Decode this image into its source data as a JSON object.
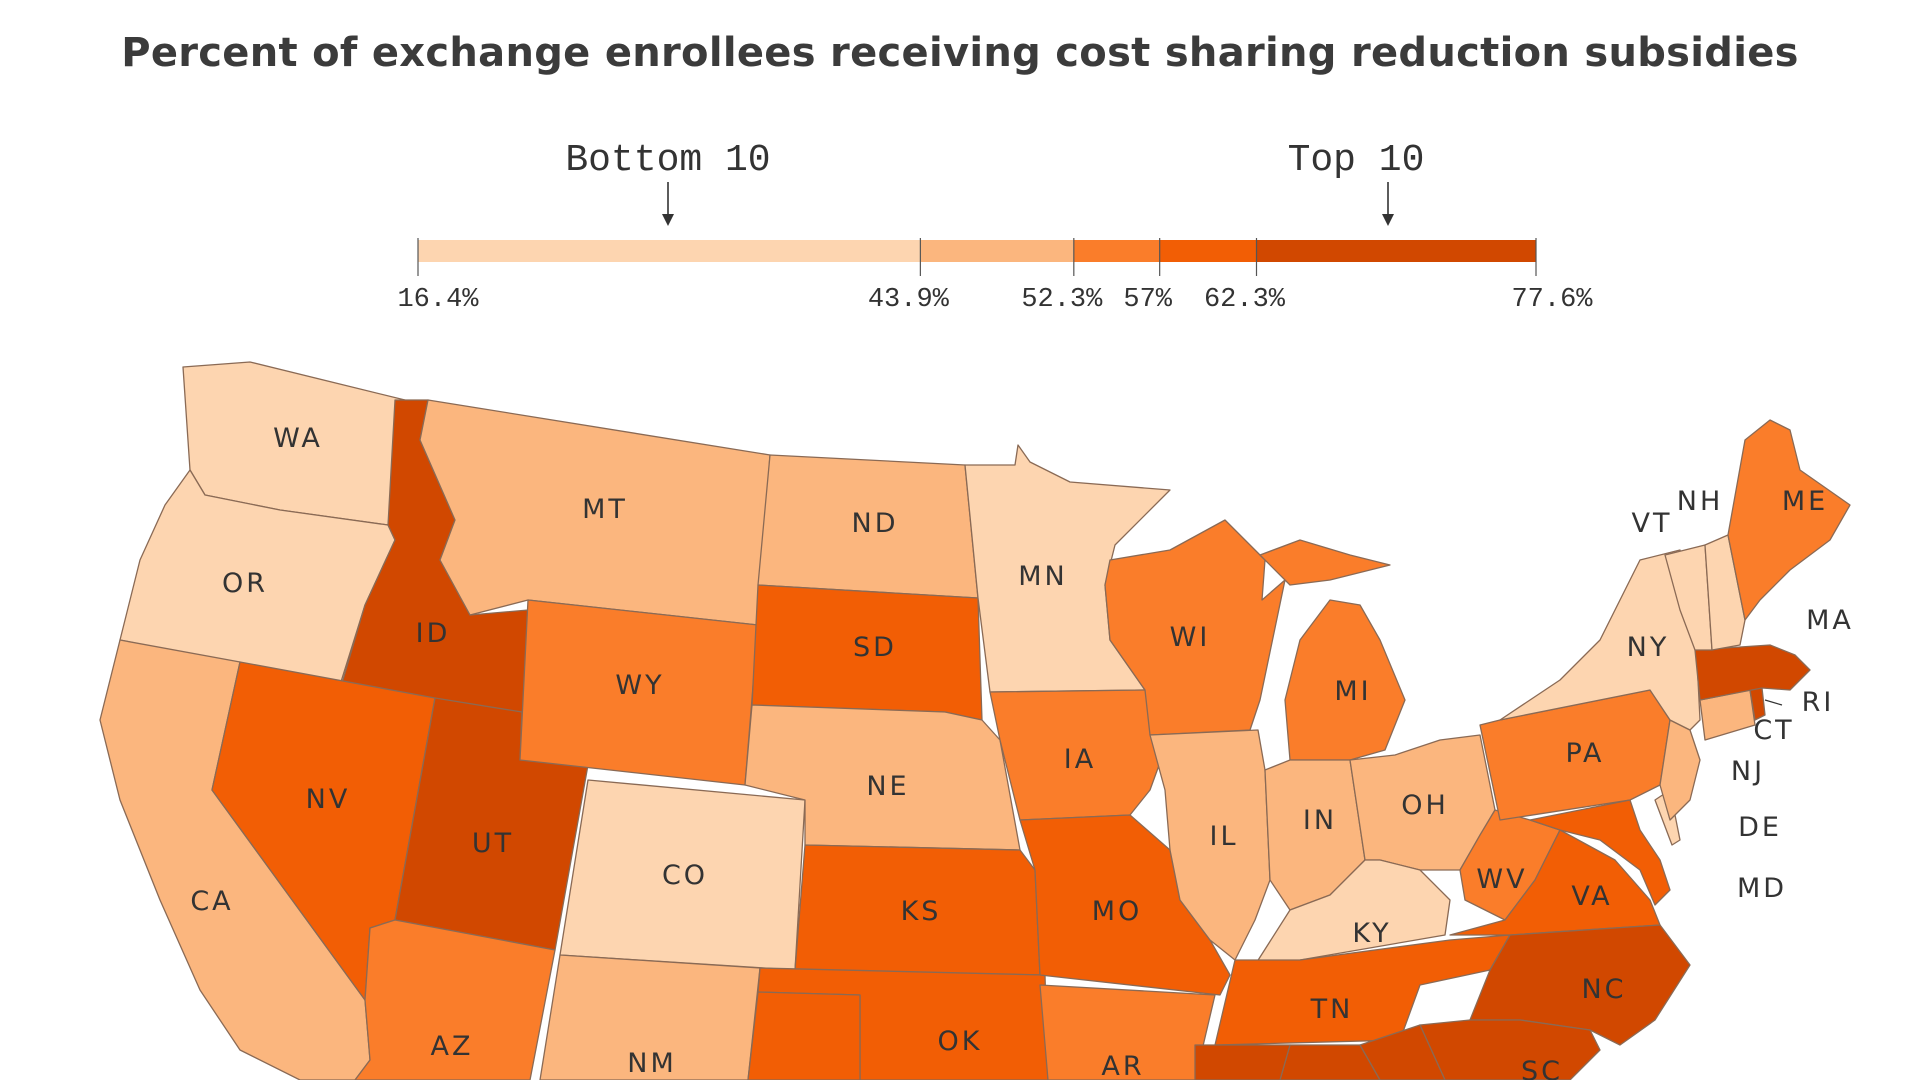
{
  "title": "Percent of exchange enrollees receiving cost sharing reduction subsidies",
  "legend": {
    "bottom_label": "Bottom 10",
    "top_label": "Top 10",
    "ticks": [
      "16.4%",
      "43.9%",
      "52.3%",
      "57%",
      "62.3%",
      "77.6%"
    ],
    "bins": [
      {
        "from": 16.4,
        "to": 43.9,
        "color": "#fdd5b0"
      },
      {
        "from": 43.9,
        "to": 52.3,
        "color": "#fbb67e"
      },
      {
        "from": 52.3,
        "to": 57,
        "color": "#fa7d2a"
      },
      {
        "from": 57,
        "to": 62.3,
        "color": "#f25e05"
      },
      {
        "from": 62.3,
        "to": 77.6,
        "color": "#d14800"
      }
    ]
  },
  "states": [
    {
      "abbr": "WA",
      "bin": 0
    },
    {
      "abbr": "OR",
      "bin": 0
    },
    {
      "abbr": "CA",
      "bin": 1
    },
    {
      "abbr": "ID",
      "bin": 4
    },
    {
      "abbr": "NV",
      "bin": 3
    },
    {
      "abbr": "UT",
      "bin": 4
    },
    {
      "abbr": "AZ",
      "bin": 2
    },
    {
      "abbr": "MT",
      "bin": 1
    },
    {
      "abbr": "WY",
      "bin": 2
    },
    {
      "abbr": "CO",
      "bin": 0
    },
    {
      "abbr": "NM",
      "bin": 1
    },
    {
      "abbr": "ND",
      "bin": 1
    },
    {
      "abbr": "SD",
      "bin": 3
    },
    {
      "abbr": "NE",
      "bin": 1
    },
    {
      "abbr": "KS",
      "bin": 3
    },
    {
      "abbr": "OK",
      "bin": 3
    },
    {
      "abbr": "MN",
      "bin": 0
    },
    {
      "abbr": "IA",
      "bin": 2
    },
    {
      "abbr": "MO",
      "bin": 3
    },
    {
      "abbr": "AR",
      "bin": 2
    },
    {
      "abbr": "WI",
      "bin": 2
    },
    {
      "abbr": "IL",
      "bin": 1
    },
    {
      "abbr": "MI",
      "bin": 2
    },
    {
      "abbr": "IN",
      "bin": 1
    },
    {
      "abbr": "OH",
      "bin": 1
    },
    {
      "abbr": "KY",
      "bin": 0
    },
    {
      "abbr": "TN",
      "bin": 3
    },
    {
      "abbr": "WV",
      "bin": 2
    },
    {
      "abbr": "VA",
      "bin": 3
    },
    {
      "abbr": "NC",
      "bin": 4
    },
    {
      "abbr": "SC",
      "bin": 4
    },
    {
      "abbr": "PA",
      "bin": 2
    },
    {
      "abbr": "NY",
      "bin": 0
    },
    {
      "abbr": "VT",
      "bin": 0
    },
    {
      "abbr": "NH",
      "bin": 0
    },
    {
      "abbr": "ME",
      "bin": 2
    },
    {
      "abbr": "MA",
      "bin": 4
    },
    {
      "abbr": "RI",
      "bin": 4
    },
    {
      "abbr": "CT",
      "bin": 1
    },
    {
      "abbr": "NJ",
      "bin": 1
    },
    {
      "abbr": "DE",
      "bin": 0
    },
    {
      "abbr": "MD",
      "bin": 3
    }
  ]
}
